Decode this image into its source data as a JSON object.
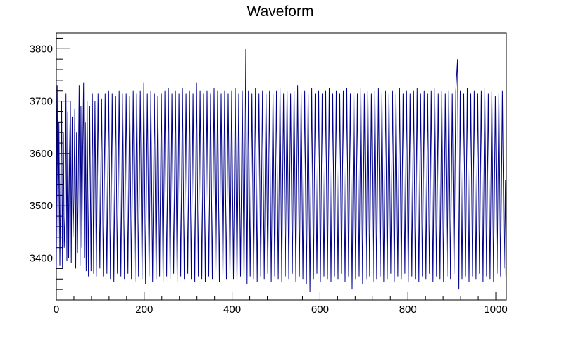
{
  "chart_data": {
    "type": "line",
    "title": "Waveform",
    "xlabel": "",
    "ylabel": "",
    "xlim": [
      0,
      1024
    ],
    "ylim": [
      3320,
      3830
    ],
    "x_ticks": [
      0,
      200,
      400,
      600,
      800,
      1000
    ],
    "x_tick_labels": [
      "0",
      "200",
      "400",
      "600",
      "800",
      "1000"
    ],
    "y_ticks": [
      3400,
      3500,
      3600,
      3700,
      3800
    ],
    "y_tick_labels": [
      "3400",
      "3500",
      "3600",
      "3700",
      "3800"
    ],
    "grid": false,
    "legend": "none",
    "line_color": "#00008b",
    "series": [
      {
        "points": [
          [
            0,
            3380
          ],
          [
            2,
            3730
          ],
          [
            4,
            3420
          ],
          [
            6,
            3660
          ],
          [
            8,
            3385
          ],
          [
            10,
            3540
          ],
          [
            12,
            3700
          ],
          [
            14,
            3380
          ],
          [
            16,
            3640
          ],
          [
            18,
            3420
          ],
          [
            20,
            3480
          ],
          [
            22,
            3715
          ],
          [
            24,
            3395
          ],
          [
            26,
            3680
          ],
          [
            28,
            3400
          ],
          [
            30,
            3600
          ],
          [
            32,
            3700
          ],
          [
            34,
            3390
          ],
          [
            36,
            3670
          ],
          [
            38,
            3440
          ],
          [
            40,
            3520
          ],
          [
            42,
            3685
          ],
          [
            44,
            3380
          ],
          [
            46,
            3640
          ],
          [
            48,
            3410
          ],
          [
            50,
            3560
          ],
          [
            52,
            3730
          ],
          [
            54,
            3385
          ],
          [
            56,
            3690
          ],
          [
            58,
            3420
          ],
          [
            60,
            3600
          ],
          [
            62,
            3735
          ],
          [
            64,
            3400
          ],
          [
            66,
            3660
          ],
          [
            68,
            3375
          ],
          [
            70,
            3700
          ],
          [
            73,
            3365
          ],
          [
            76,
            3690
          ],
          [
            79,
            3375
          ],
          [
            82,
            3715
          ],
          [
            85,
            3370
          ],
          [
            88,
            3700
          ],
          [
            91,
            3365
          ],
          [
            95,
            3715
          ],
          [
            99,
            3380
          ],
          [
            103,
            3705
          ],
          [
            107,
            3365
          ],
          [
            111,
            3715
          ],
          [
            115,
            3370
          ],
          [
            119,
            3720
          ],
          [
            123,
            3360
          ],
          [
            127,
            3715
          ],
          [
            131,
            3355
          ],
          [
            135,
            3710
          ],
          [
            139,
            3370
          ],
          [
            143,
            3720
          ],
          [
            147,
            3365
          ],
          [
            151,
            3715
          ],
          [
            155,
            3360
          ],
          [
            159,
            3715
          ],
          [
            163,
            3370
          ],
          [
            167,
            3710
          ],
          [
            171,
            3360
          ],
          [
            175,
            3720
          ],
          [
            179,
            3355
          ],
          [
            183,
            3715
          ],
          [
            187,
            3365
          ],
          [
            191,
            3720
          ],
          [
            195,
            3360
          ],
          [
            199,
            3735
          ],
          [
            203,
            3350
          ],
          [
            207,
            3715
          ],
          [
            211,
            3365
          ],
          [
            215,
            3720
          ],
          [
            219,
            3355
          ],
          [
            223,
            3715
          ],
          [
            227,
            3360
          ],
          [
            231,
            3710
          ],
          [
            235,
            3365
          ],
          [
            239,
            3715
          ],
          [
            243,
            3355
          ],
          [
            247,
            3720
          ],
          [
            251,
            3365
          ],
          [
            255,
            3725
          ],
          [
            259,
            3360
          ],
          [
            263,
            3715
          ],
          [
            267,
            3370
          ],
          [
            271,
            3720
          ],
          [
            275,
            3355
          ],
          [
            279,
            3715
          ],
          [
            283,
            3365
          ],
          [
            287,
            3725
          ],
          [
            291,
            3360
          ],
          [
            295,
            3715
          ],
          [
            299,
            3370
          ],
          [
            303,
            3720
          ],
          [
            307,
            3360
          ],
          [
            311,
            3715
          ],
          [
            315,
            3355
          ],
          [
            319,
            3735
          ],
          [
            323,
            3365
          ],
          [
            327,
            3720
          ],
          [
            331,
            3360
          ],
          [
            335,
            3715
          ],
          [
            339,
            3355
          ],
          [
            343,
            3720
          ],
          [
            347,
            3365
          ],
          [
            351,
            3715
          ],
          [
            355,
            3360
          ],
          [
            359,
            3725
          ],
          [
            363,
            3370
          ],
          [
            367,
            3720
          ],
          [
            371,
            3355
          ],
          [
            375,
            3715
          ],
          [
            379,
            3365
          ],
          [
            383,
            3720
          ],
          [
            387,
            3360
          ],
          [
            391,
            3715
          ],
          [
            395,
            3370
          ],
          [
            399,
            3720
          ],
          [
            403,
            3360
          ],
          [
            407,
            3725
          ],
          [
            411,
            3355
          ],
          [
            415,
            3715
          ],
          [
            419,
            3365
          ],
          [
            423,
            3720
          ],
          [
            427,
            3360
          ],
          [
            431,
            3800
          ],
          [
            434,
            3350
          ],
          [
            437,
            3720
          ],
          [
            441,
            3365
          ],
          [
            445,
            3715
          ],
          [
            449,
            3360
          ],
          [
            453,
            3725
          ],
          [
            457,
            3355
          ],
          [
            461,
            3715
          ],
          [
            465,
            3365
          ],
          [
            469,
            3720
          ],
          [
            473,
            3360
          ],
          [
            477,
            3715
          ],
          [
            481,
            3370
          ],
          [
            485,
            3720
          ],
          [
            489,
            3355
          ],
          [
            493,
            3715
          ],
          [
            497,
            3365
          ],
          [
            501,
            3720
          ],
          [
            505,
            3360
          ],
          [
            509,
            3725
          ],
          [
            513,
            3355
          ],
          [
            517,
            3715
          ],
          [
            521,
            3365
          ],
          [
            525,
            3720
          ],
          [
            529,
            3360
          ],
          [
            533,
            3715
          ],
          [
            537,
            3370
          ],
          [
            541,
            3720
          ],
          [
            545,
            3355
          ],
          [
            549,
            3730
          ],
          [
            553,
            3365
          ],
          [
            557,
            3715
          ],
          [
            561,
            3360
          ],
          [
            565,
            3720
          ],
          [
            569,
            3350
          ],
          [
            573,
            3715
          ],
          [
            577,
            3335
          ],
          [
            581,
            3725
          ],
          [
            585,
            3360
          ],
          [
            589,
            3715
          ],
          [
            593,
            3370
          ],
          [
            597,
            3720
          ],
          [
            601,
            3355
          ],
          [
            605,
            3715
          ],
          [
            609,
            3365
          ],
          [
            613,
            3720
          ],
          [
            617,
            3360
          ],
          [
            621,
            3725
          ],
          [
            625,
            3355
          ],
          [
            629,
            3715
          ],
          [
            633,
            3365
          ],
          [
            637,
            3720
          ],
          [
            641,
            3360
          ],
          [
            645,
            3715
          ],
          [
            649,
            3370
          ],
          [
            653,
            3720
          ],
          [
            657,
            3355
          ],
          [
            661,
            3725
          ],
          [
            665,
            3365
          ],
          [
            669,
            3715
          ],
          [
            673,
            3340
          ],
          [
            677,
            3720
          ],
          [
            681,
            3360
          ],
          [
            685,
            3715
          ],
          [
            689,
            3365
          ],
          [
            693,
            3725
          ],
          [
            697,
            3350
          ],
          [
            701,
            3715
          ],
          [
            705,
            3360
          ],
          [
            709,
            3720
          ],
          [
            713,
            3365
          ],
          [
            717,
            3715
          ],
          [
            721,
            3355
          ],
          [
            725,
            3720
          ],
          [
            729,
            3360
          ],
          [
            733,
            3725
          ],
          [
            737,
            3365
          ],
          [
            741,
            3715
          ],
          [
            745,
            3355
          ],
          [
            749,
            3720
          ],
          [
            753,
            3360
          ],
          [
            757,
            3715
          ],
          [
            761,
            3370
          ],
          [
            765,
            3720
          ],
          [
            769,
            3355
          ],
          [
            773,
            3715
          ],
          [
            777,
            3365
          ],
          [
            781,
            3725
          ],
          [
            785,
            3360
          ],
          [
            789,
            3715
          ],
          [
            793,
            3370
          ],
          [
            797,
            3720
          ],
          [
            801,
            3355
          ],
          [
            805,
            3715
          ],
          [
            809,
            3365
          ],
          [
            813,
            3720
          ],
          [
            817,
            3360
          ],
          [
            821,
            3725
          ],
          [
            825,
            3355
          ],
          [
            829,
            3715
          ],
          [
            833,
            3365
          ],
          [
            837,
            3720
          ],
          [
            841,
            3360
          ],
          [
            845,
            3715
          ],
          [
            849,
            3370
          ],
          [
            853,
            3720
          ],
          [
            857,
            3355
          ],
          [
            861,
            3725
          ],
          [
            865,
            3365
          ],
          [
            869,
            3715
          ],
          [
            873,
            3360
          ],
          [
            877,
            3720
          ],
          [
            881,
            3355
          ],
          [
            885,
            3715
          ],
          [
            889,
            3365
          ],
          [
            893,
            3720
          ],
          [
            897,
            3360
          ],
          [
            901,
            3715
          ],
          [
            905,
            3370
          ],
          [
            909,
            3720
          ],
          [
            913,
            3780
          ],
          [
            916,
            3340
          ],
          [
            919,
            3720
          ],
          [
            923,
            3360
          ],
          [
            927,
            3715
          ],
          [
            931,
            3365
          ],
          [
            935,
            3725
          ],
          [
            939,
            3355
          ],
          [
            943,
            3715
          ],
          [
            947,
            3365
          ],
          [
            951,
            3720
          ],
          [
            955,
            3360
          ],
          [
            959,
            3715
          ],
          [
            963,
            3370
          ],
          [
            967,
            3720
          ],
          [
            971,
            3355
          ],
          [
            975,
            3725
          ],
          [
            979,
            3365
          ],
          [
            983,
            3715
          ],
          [
            987,
            3360
          ],
          [
            991,
            3720
          ],
          [
            995,
            3355
          ],
          [
            999,
            3710
          ],
          [
            1003,
            3370
          ],
          [
            1007,
            3715
          ],
          [
            1011,
            3365
          ],
          [
            1015,
            3720
          ],
          [
            1019,
            3380
          ],
          [
            1022,
            3550
          ],
          [
            1023,
            3365
          ]
        ]
      }
    ]
  }
}
